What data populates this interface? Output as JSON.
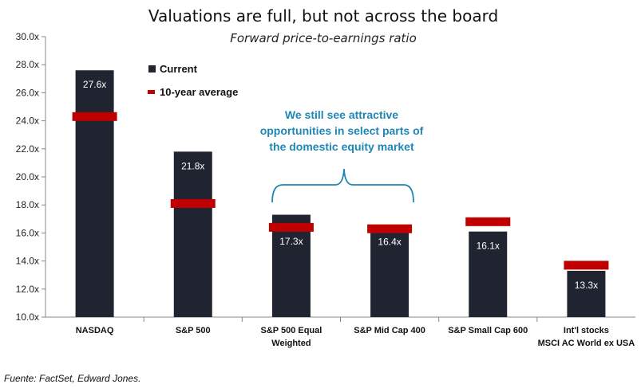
{
  "chart_data": {
    "type": "bar",
    "title": "Valuations are full, but not across the board",
    "subtitle": "Forward price-to-earnings ratio",
    "categories": [
      [
        "NASDAQ"
      ],
      [
        "S&P 500"
      ],
      [
        "S&P 500 Equal",
        "Weighted"
      ],
      [
        "S&P Mid Cap 400"
      ],
      [
        "S&P Small Cap 600"
      ],
      [
        "Int'l stocks",
        "MSCI AC World ex USA"
      ]
    ],
    "series": [
      {
        "name": "Current",
        "values": [
          27.6,
          21.8,
          17.3,
          16.4,
          16.1,
          13.3
        ],
        "labels": [
          "27.6x",
          "21.8x",
          "17.3x",
          "16.4x",
          "16.1x",
          "13.3x"
        ]
      },
      {
        "name": "10-year average",
        "values": [
          24.3,
          18.1,
          16.4,
          16.3,
          16.8,
          13.7
        ]
      }
    ],
    "ylim": [
      10,
      30
    ],
    "yticks": [
      "10.0x",
      "12.0x",
      "14.0x",
      "16.0x",
      "18.0x",
      "20.0x",
      "22.0x",
      "24.0x",
      "26.0x",
      "28.0x",
      "30.0x"
    ],
    "legend": [
      "Current",
      "10-year average"
    ],
    "annotation": [
      "We still see attractive",
      "opportunities in select parts of",
      "the domestic equity market"
    ],
    "colors": {
      "bar": "#1f2430",
      "average": "#c00000",
      "annotation": "#1f87b4",
      "axis": "#888888"
    }
  },
  "source": "Fuente: FactSet, Edward Jones."
}
